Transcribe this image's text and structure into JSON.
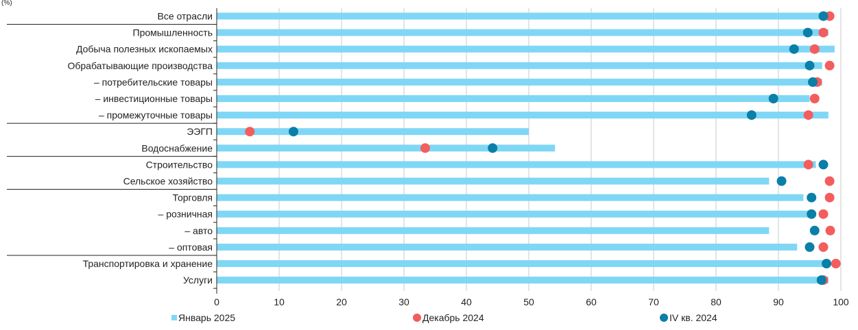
{
  "chart_data": {
    "type": "bar",
    "orientation": "horizontal",
    "unit_label": "(%)",
    "xlim": [
      0,
      100
    ],
    "x_ticks": [
      "0",
      "10",
      "20",
      "30",
      "40",
      "50",
      "60",
      "70",
      "80",
      "90",
      "100"
    ],
    "grid": "vertical",
    "legend_position": "bottom",
    "categories": [
      "Все отрасли",
      "Промышленность",
      "Добыча полезных ископаемых",
      "Обрабатывающие производства",
      "– потребительские товары",
      "– инвестиционные товары",
      "– промежуточные товары",
      "ЭЭГП",
      "Водоснабжение",
      "Строительство",
      "Сельское хозяйство",
      "Торговля",
      "– розничная",
      "– авто",
      "– оптовая",
      "Транспортировка и хранение",
      "Услуги"
    ],
    "group_starts": [
      1,
      7,
      9,
      11,
      15
    ],
    "series": [
      {
        "name": "Январь 2025",
        "kind": "bar",
        "color": "#7fd7f5",
        "values": [
          97.5,
          98,
          99,
          97,
          97,
          95,
          98,
          50,
          54.2,
          96,
          88.5,
          94,
          95.5,
          88.5,
          93,
          97.5,
          98
        ]
      },
      {
        "name": "Декабрь 2024",
        "kind": "dot",
        "color": "#f45d5d",
        "values": [
          98.2,
          97.2,
          95.8,
          98.2,
          96.2,
          95.8,
          94.8,
          5.3,
          33.4,
          94.8,
          98.2,
          98.2,
          97.2,
          98.3,
          97.2,
          99.2,
          97.2
        ]
      },
      {
        "name": "IV кв. 2024",
        "kind": "dot",
        "color": "#0a7fa8",
        "values": [
          97.2,
          94.7,
          92.5,
          95.0,
          95.5,
          89.2,
          85.7,
          12.3,
          44.2,
          97.2,
          90.5,
          95.3,
          95.3,
          95.8,
          95.0,
          97.7,
          96.9
        ]
      }
    ]
  }
}
